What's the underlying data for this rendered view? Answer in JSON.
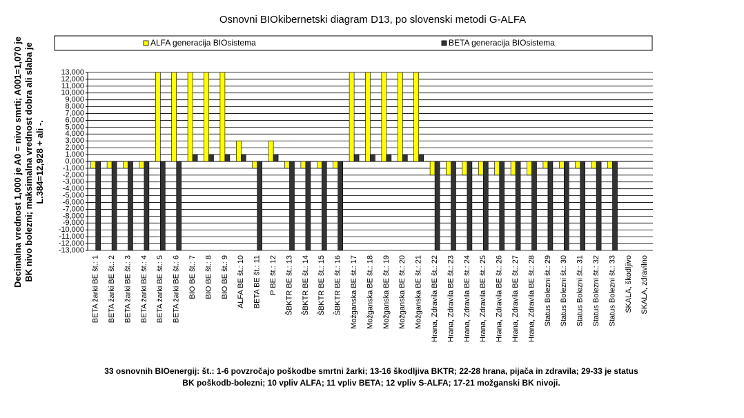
{
  "chart_data": {
    "type": "bar",
    "title": "Osnovni BIOkibernetski diagram D13, po slovenski metodi G-ALFA",
    "ylabel": [
      "Decimalna vrednost 1,000 je A0 = nivo smrti; A001=1,070 je",
      "BK nivo bolezni; maksimalna vrednost dobra ali slaba je",
      "L.384=12,928 + ali -."
    ],
    "caption": [
      "33 osnovnih BIOenergij: št.: 1-6 povzročajo poškodbe smrtni žarki; 13-16 škodljiva BKTR; 22-28 hrana, pijača in zdravila; 29-33 je status",
      "BK poškodb-bolezni; 10 vpliv ALFA; 11 vpliv BETA; 12 vpliv S-ALFA; 17-21 možganski BK nivoji."
    ],
    "categories": [
      "BETA žarki BE št.: 1",
      "BETA žarki BE št.: 2",
      "BETA žarki BE št.: 3",
      "BETA žarki BE št.: 4",
      "BETA žarki BE št.: 5",
      "BETA žarki BE št.: 6",
      "BIO  BE št.: 7",
      "BIO  BE št.: 8",
      "BIO  BE št.: 9",
      "ALFA  BE št.: 10",
      "BETA BE št.: 11",
      "P  BE št.: 12",
      "ŠBKTR BE št.: 13",
      "ŠBKTR BE št.: 14",
      "ŠBKTR BE št.: 15",
      "ŠBKTR BE št.: 16",
      "Možganska  BE št.: 17",
      "Možganska  BE št.: 18",
      "Možganska  BE št.: 19",
      "Možganska  BE št.: 20",
      "Možganska  BE št.: 21",
      "Hrana, Zdravila BE št.: 22",
      "Hrana, Zdravila BE št.: 23",
      "Hrana, Zdravila BE št.: 24",
      "Hrana, Zdravila BE št.: 25",
      "Hrana, Zdravila BE št.: 26",
      "Hrana, Zdravila BE št.: 27",
      "Hrana, Zdravila BE št.: 28",
      "Status Bolezni št.: 29",
      "Status Bolezni št.: 30",
      "Status Bolezni št.: 31",
      "Status Bolezni št.: 32",
      "Status Bolezni št.: 33",
      "SKALA, škodljivo",
      "SKALA, zdravilno"
    ],
    "series": [
      {
        "name": "ALFA generacija BIOsistema",
        "color": "#ffff00",
        "values": [
          -1,
          -1,
          -1,
          -1,
          13,
          13,
          13,
          13,
          13,
          3,
          -1,
          3,
          -1,
          -1,
          -1,
          -1,
          13,
          13,
          13,
          13,
          13,
          -2,
          -2,
          -2,
          -2,
          -2,
          -2,
          -2,
          -1,
          -1,
          -1,
          -1,
          -1,
          0,
          0
        ]
      },
      {
        "name": "BETA generacija BIOsistema",
        "color": "#333333",
        "values": [
          -13,
          -13,
          -13,
          -13,
          -13,
          -13,
          1,
          1,
          1,
          1,
          -13,
          1,
          -13,
          -13,
          -13,
          -13,
          1,
          1,
          1,
          1,
          1,
          -13,
          -13,
          -13,
          -13,
          -13,
          -13,
          -13,
          -13,
          -13,
          -13,
          -13,
          -13,
          0,
          0
        ]
      }
    ],
    "ylim": [
      -13,
      13
    ],
    "yticks": [
      {
        "value": 13,
        "label": "13,000"
      },
      {
        "value": 12,
        "label": "12,000"
      },
      {
        "value": 11,
        "label": "11,000"
      },
      {
        "value": 10,
        "label": "10,000"
      },
      {
        "value": 9,
        "label": "9,000"
      },
      {
        "value": 8,
        "label": "8,000"
      },
      {
        "value": 7,
        "label": "7,000"
      },
      {
        "value": 6,
        "label": "6,000"
      },
      {
        "value": 5,
        "label": "5,000"
      },
      {
        "value": 4,
        "label": "4,000"
      },
      {
        "value": 3,
        "label": "3,000"
      },
      {
        "value": 2,
        "label": "2,000"
      },
      {
        "value": 1,
        "label": "1,000"
      },
      {
        "value": 0,
        "label": "0,000"
      },
      {
        "value": -1,
        "label": "-1,000"
      },
      {
        "value": -2,
        "label": "-2,000"
      },
      {
        "value": -3,
        "label": "-3,000"
      },
      {
        "value": -4,
        "label": "-4,000"
      },
      {
        "value": -5,
        "label": "-5,000"
      },
      {
        "value": -6,
        "label": "-6,000"
      },
      {
        "value": -7,
        "label": "-7,000"
      },
      {
        "value": -8,
        "label": "-8,000"
      },
      {
        "value": -9,
        "label": "-9,000"
      },
      {
        "value": -10,
        "label": "-10,000"
      },
      {
        "value": -11,
        "label": "-11,000"
      },
      {
        "value": -12,
        "label": "-12,000"
      },
      {
        "value": -13,
        "label": "-13,000"
      }
    ],
    "grid": true
  }
}
